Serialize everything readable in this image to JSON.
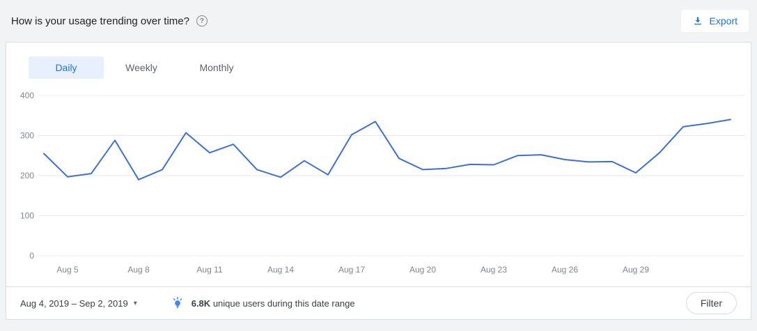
{
  "header": {
    "title": "How is your usage trending over time?",
    "help_glyph": "?",
    "export_label": "Export"
  },
  "tabs": [
    {
      "label": "Daily",
      "active": true
    },
    {
      "label": "Weekly",
      "active": false
    },
    {
      "label": "Monthly",
      "active": false
    }
  ],
  "footer": {
    "date_range": "Aug 4, 2019 – Sep 2, 2019",
    "caret_glyph": "▾",
    "insight_value": "6.8K",
    "insight_text": "unique users during this date range",
    "filter_label": "Filter"
  },
  "colors": {
    "accent_blue": "#1a73e8",
    "tab_active_bg": "#e8f0fe",
    "grid_gray": "#e8e8e8",
    "axis_text": "#80868b"
  },
  "chart_data": {
    "type": "line",
    "title": "Daily usage trend",
    "x": [
      "Aug 4",
      "Aug 5",
      "Aug 6",
      "Aug 7",
      "Aug 8",
      "Aug 9",
      "Aug 10",
      "Aug 11",
      "Aug 12",
      "Aug 13",
      "Aug 14",
      "Aug 15",
      "Aug 16",
      "Aug 17",
      "Aug 18",
      "Aug 19",
      "Aug 20",
      "Aug 21",
      "Aug 22",
      "Aug 23",
      "Aug 24",
      "Aug 25",
      "Aug 26",
      "Aug 27",
      "Aug 28",
      "Aug 29",
      "Aug 30",
      "Aug 31",
      "Sep 1",
      "Sep 2"
    ],
    "values": [
      255,
      197,
      205,
      288,
      190,
      215,
      307,
      257,
      278,
      215,
      196,
      237,
      202,
      302,
      335,
      243,
      215,
      218,
      228,
      227,
      250,
      252,
      240,
      234,
      235,
      207,
      257,
      322,
      330,
      340
    ],
    "x_tick_labels": [
      "Aug 5",
      "Aug 8",
      "Aug 11",
      "Aug 14",
      "Aug 17",
      "Aug 20",
      "Aug 23",
      "Aug 26",
      "Aug 29"
    ],
    "x_tick_indices": [
      1,
      4,
      7,
      10,
      13,
      16,
      19,
      22,
      25
    ],
    "yticks": [
      0,
      100,
      200,
      300,
      400
    ],
    "ylim": [
      0,
      400
    ],
    "grid": true,
    "legend": "none",
    "line_color": "#3d6fd8"
  }
}
